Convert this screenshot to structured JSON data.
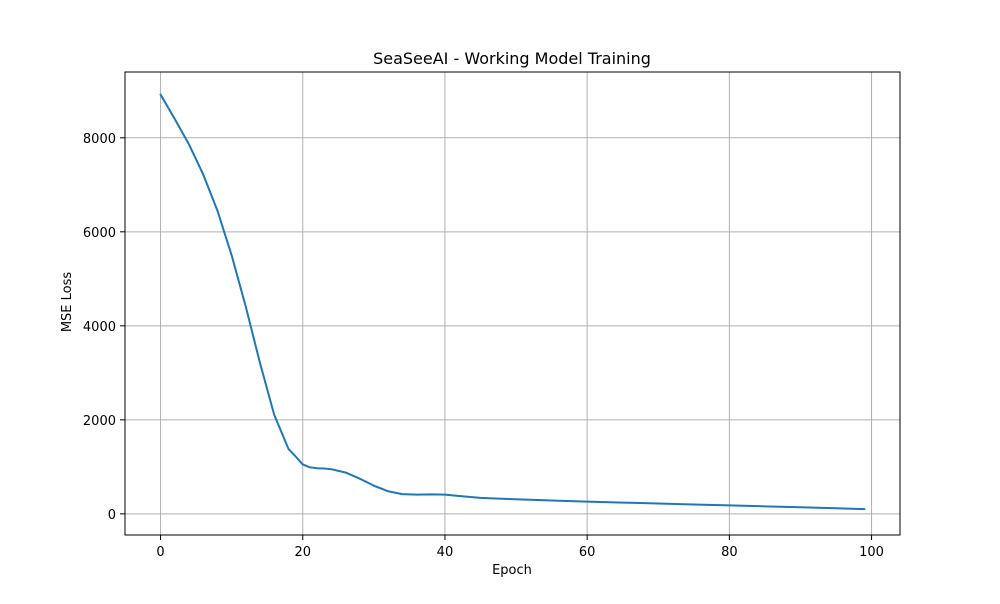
{
  "chart_data": {
    "type": "line",
    "title": "SeaSeeAI - Working Model Training",
    "xlabel": "Epoch",
    "ylabel": "MSE Loss",
    "xlim": [
      -5,
      104
    ],
    "ylim": [
      -450,
      9400
    ],
    "xticks": [
      0,
      20,
      40,
      60,
      80,
      100
    ],
    "yticks": [
      0,
      2000,
      4000,
      6000,
      8000
    ],
    "grid": true,
    "series": [
      {
        "color": "#1f77b4",
        "x": [
          0,
          2,
          4,
          6,
          8,
          10,
          12,
          14,
          16,
          18,
          19,
          20,
          21,
          22,
          23,
          24,
          26,
          28,
          30,
          32,
          34,
          36,
          38,
          40,
          42,
          45,
          48,
          52,
          56,
          60,
          65,
          70,
          75,
          80,
          85,
          90,
          95,
          99
        ],
        "y": [
          8920,
          8400,
          7860,
          7220,
          6450,
          5500,
          4400,
          3200,
          2100,
          1380,
          1220,
          1050,
          990,
          970,
          965,
          950,
          880,
          750,
          600,
          480,
          420,
          410,
          415,
          410,
          380,
          340,
          320,
          300,
          280,
          260,
          240,
          220,
          200,
          180,
          160,
          140,
          120,
          100
        ]
      }
    ]
  }
}
